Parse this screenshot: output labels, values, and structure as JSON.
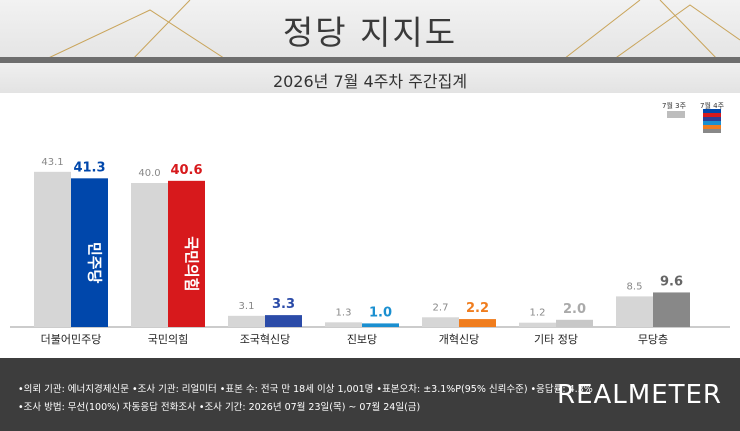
{
  "title": "정당 지지도",
  "subtitle": "2026년 7월 4주차 주간집계",
  "legend": {
    "prev": "7월 3주",
    "curr": "7월 4주",
    "prev_color": "#bdbdbd",
    "curr_colors": [
      "#0047ab",
      "#d7191c",
      "#2c3e94",
      "#1a8fd0",
      "#f07d1e",
      "#888888"
    ]
  },
  "chart_data": {
    "type": "bar",
    "categories": [
      "더불어민주당",
      "국민의힘",
      "조국혁신당",
      "진보당",
      "개혁신당",
      "기타 정당",
      "무당층"
    ],
    "series": [
      {
        "name": "7월 3주",
        "values": [
          43.1,
          40.0,
          3.1,
          1.3,
          2.7,
          1.2,
          8.5
        ]
      },
      {
        "name": "7월 4주",
        "values": [
          41.3,
          40.6,
          3.3,
          1.0,
          2.2,
          2.0,
          9.6
        ]
      }
    ],
    "value_labels_prev": [
      "43.1",
      "40.0",
      "3.1",
      "1.3",
      "2.7",
      "1.2",
      "8.5"
    ],
    "value_labels_curr": [
      "41.3",
      "40.6",
      "3.3",
      "1.0",
      "2.2",
      "2.0",
      "9.6"
    ],
    "curr_colors": [
      "#0047ab",
      "#d7191c",
      "#2b4ba8",
      "#1a8fd0",
      "#f07d1e",
      "#c8c8c8",
      "#888888"
    ],
    "curr_label_colors": [
      "#0047ab",
      "#d7191c",
      "#2b4ba8",
      "#1a8fd0",
      "#f07d1e",
      "#aaaaaa",
      "#666666"
    ],
    "prev_color": "#d6d6d6",
    "ylim": [
      0,
      50
    ],
    "bar_logos": [
      "민주당",
      "국민의힘"
    ]
  },
  "footer": {
    "line1": "•의뢰 기관: 에너지경제신문  •조사 기관: 리얼미터  •표본 수: 전국 만 18세 이상 1,001명  •표본오차: ±3.1%P(95% 신뢰수준)  •응답률: 4.3%",
    "line2": "•조사 방법: 무선(100%) 자동응답 전화조사  •조사 기간: 2026년 07월 23일(목) ~ 07월 24일(금)",
    "brand": "REALMETER"
  }
}
